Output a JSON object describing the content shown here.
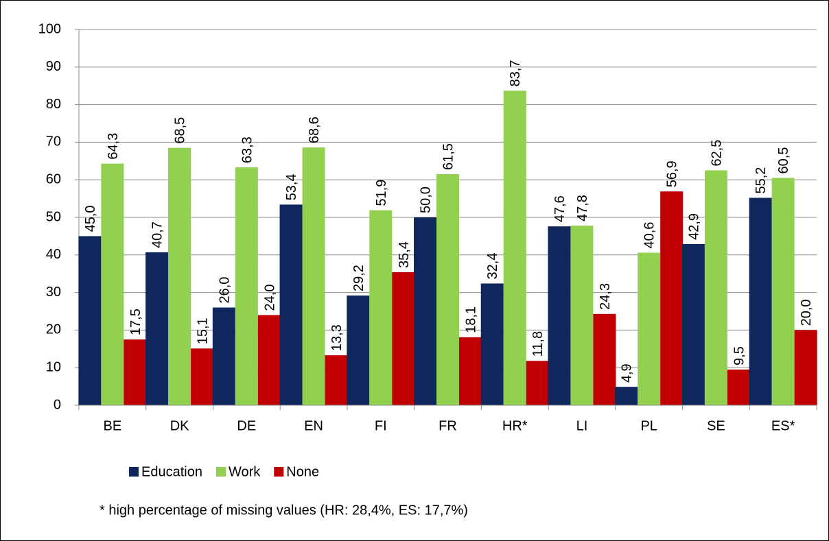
{
  "chart_data": {
    "type": "bar",
    "categories": [
      "BE",
      "DK",
      "DE",
      "EN",
      "FI",
      "FR",
      "HR*",
      "LI",
      "PL",
      "SE",
      "ES*"
    ],
    "series": [
      {
        "name": "Education",
        "color": "#10275e",
        "values": [
          45.0,
          40.7,
          26.0,
          53.4,
          29.2,
          50.0,
          32.4,
          47.6,
          4.9,
          42.9,
          55.2
        ],
        "value_labels": [
          "45,0",
          "40,7",
          "26,0",
          "53,4",
          "29,2",
          "50,0",
          "32,4",
          "47,6",
          "4,9",
          "42,9",
          "55,2"
        ]
      },
      {
        "name": "Work",
        "color": "#92d050",
        "values": [
          64.3,
          68.5,
          63.3,
          68.6,
          51.9,
          61.5,
          83.7,
          47.8,
          40.6,
          62.5,
          60.5
        ],
        "value_labels": [
          "64,3",
          "68,5",
          "63,3",
          "68,6",
          "51,9",
          "61,5",
          "83,7",
          "47,8",
          "40,6",
          "62,5",
          "60,5"
        ]
      },
      {
        "name": "None",
        "color": "#c00000",
        "values": [
          17.5,
          15.1,
          24.0,
          13.3,
          35.4,
          18.1,
          11.8,
          24.3,
          56.9,
          9.5,
          20.0
        ],
        "value_labels": [
          "17,5",
          "15,1",
          "24,0",
          "13,3",
          "35,4",
          "18,1",
          "11,8",
          "24,3",
          "56,9",
          "9,5",
          "20,0"
        ]
      }
    ],
    "ylim": [
      0,
      100
    ],
    "yticks": [
      0,
      10,
      20,
      30,
      40,
      50,
      60,
      70,
      80,
      90,
      100
    ],
    "grid": true,
    "legend": "bottom",
    "footnote": "* high percentage of missing values (HR: 28,4%, ES: 17,7%)"
  }
}
